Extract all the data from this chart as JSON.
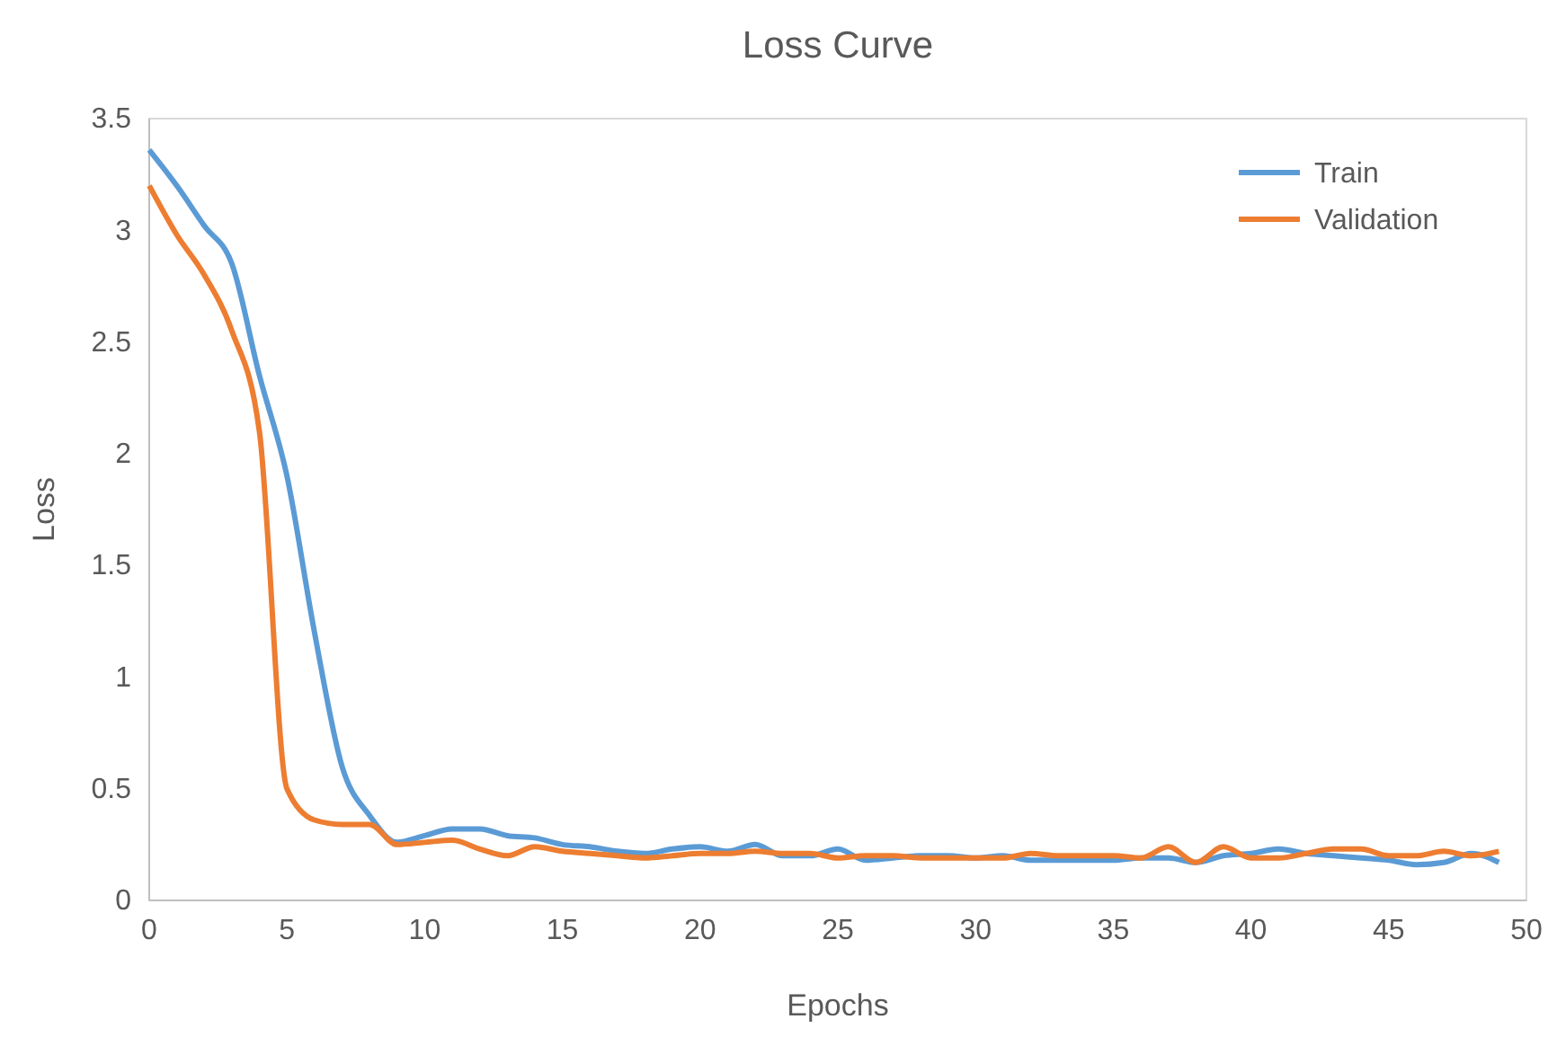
{
  "chart_data": {
    "type": "line",
    "title": "Loss Curve",
    "xlabel": "Epochs",
    "ylabel": "Loss",
    "x": [
      0,
      1,
      2,
      3,
      4,
      5,
      6,
      7,
      8,
      9,
      10,
      11,
      12,
      13,
      14,
      15,
      16,
      17,
      18,
      19,
      20,
      21,
      22,
      23,
      24,
      25,
      26,
      27,
      28,
      29,
      30,
      31,
      32,
      33,
      34,
      35,
      36,
      37,
      38,
      39,
      40,
      41,
      42,
      43,
      44,
      45,
      46,
      47,
      48,
      49
    ],
    "series": [
      {
        "name": "Train",
        "color": "#5b9bd5",
        "values": [
          3.36,
          3.2,
          3.02,
          2.85,
          2.35,
          1.9,
          1.2,
          0.6,
          0.38,
          0.26,
          0.29,
          0.32,
          0.32,
          0.29,
          0.28,
          0.25,
          0.24,
          0.22,
          0.21,
          0.23,
          0.24,
          0.22,
          0.25,
          0.2,
          0.2,
          0.23,
          0.18,
          0.19,
          0.2,
          0.2,
          0.19,
          0.2,
          0.18,
          0.18,
          0.18,
          0.18,
          0.19,
          0.19,
          0.17,
          0.2,
          0.21,
          0.23,
          0.21,
          0.2,
          0.19,
          0.18,
          0.16,
          0.17,
          0.21,
          0.17
        ]
      },
      {
        "name": "Validation",
        "color": "#ed7d31",
        "values": [
          3.2,
          2.98,
          2.8,
          2.55,
          2.1,
          0.5,
          0.36,
          0.34,
          0.34,
          0.25,
          0.26,
          0.27,
          0.23,
          0.2,
          0.24,
          0.22,
          0.21,
          0.2,
          0.19,
          0.2,
          0.21,
          0.21,
          0.22,
          0.21,
          0.21,
          0.19,
          0.2,
          0.2,
          0.19,
          0.19,
          0.19,
          0.19,
          0.21,
          0.2,
          0.2,
          0.2,
          0.19,
          0.24,
          0.17,
          0.24,
          0.19,
          0.19,
          0.21,
          0.23,
          0.23,
          0.2,
          0.2,
          0.22,
          0.2,
          0.22
        ]
      }
    ],
    "xlim": [
      0,
      50
    ],
    "xticks": [
      0,
      5,
      10,
      15,
      20,
      25,
      30,
      35,
      40,
      45,
      50
    ],
    "ylim": [
      0,
      3.5
    ],
    "yticks": [
      0,
      0.5,
      1,
      1.5,
      2,
      2.5,
      3,
      3.5
    ],
    "grid": false,
    "legend": "top right",
    "marker": "none",
    "line_style": "solid"
  }
}
